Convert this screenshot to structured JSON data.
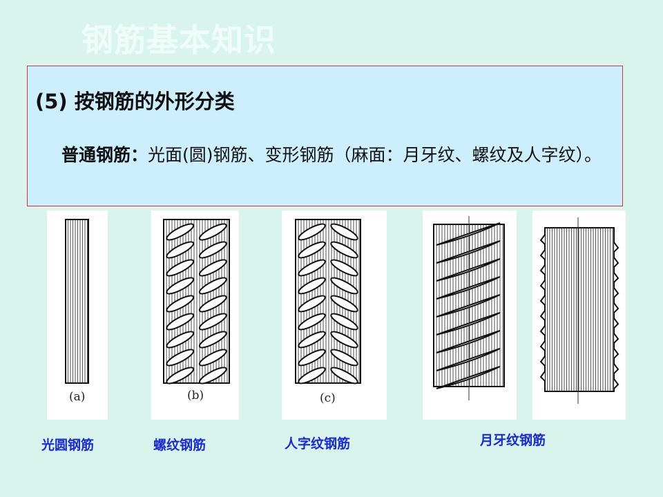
{
  "slide_title": "钢筋基本知识",
  "box": {
    "heading": "(5) 按钢筋的外形分类",
    "lead": "普通钢筋：",
    "body": "光面(圆)钢筋、变形钢筋（麻面：月牙纹、螺纹及人字纹）。"
  },
  "figures": [
    {
      "caption": "(a)",
      "label": "光圆钢筋",
      "type": "plain"
    },
    {
      "caption": "(b)",
      "label": "螺纹钢筋",
      "type": "spiral"
    },
    {
      "caption": "(c)",
      "label": "人字纹钢筋",
      "type": "herringbone"
    },
    {
      "caption": "",
      "label": "月牙纹钢筋",
      "type": "crescent-front"
    },
    {
      "caption": "",
      "label": "",
      "type": "crescent-side"
    }
  ],
  "colors": {
    "background": "#d8f4ec",
    "box": "#cdeefc",
    "box_border": "#d0303a",
    "label": "#1a2ad6"
  }
}
